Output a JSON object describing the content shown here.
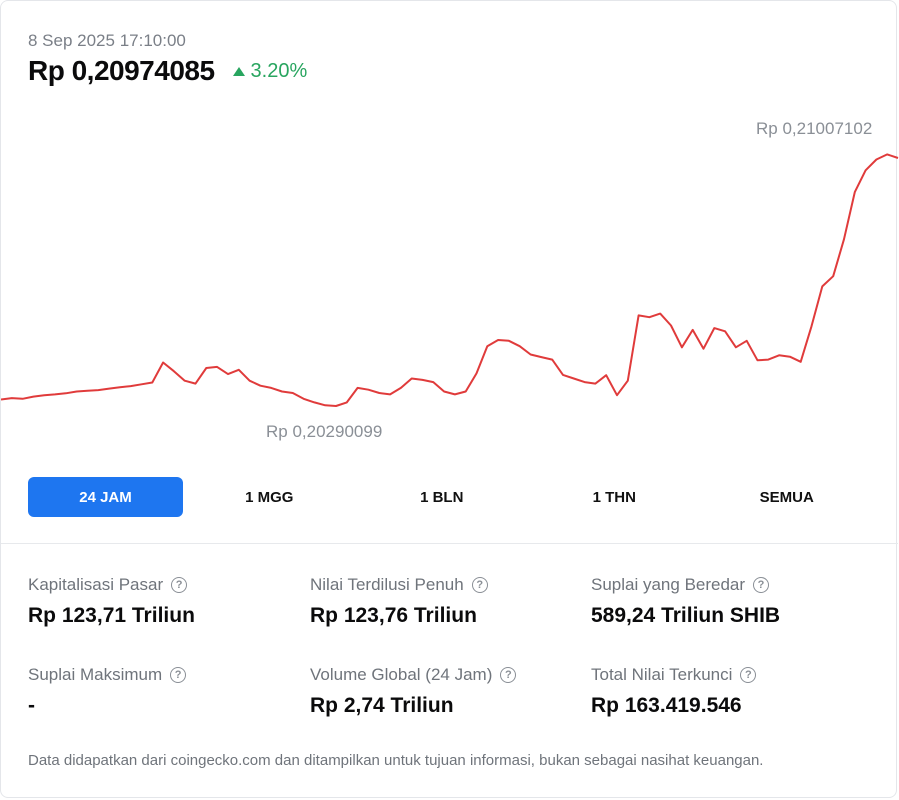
{
  "header": {
    "timestamp": "8 Sep 2025 17:10:00",
    "price": "Rp 0,20974085",
    "change": "3.20%",
    "change_color": "#28a55f"
  },
  "chart_data": {
    "type": "line",
    "title": "",
    "xlabel": "",
    "ylabel": "",
    "line_color": "#e03b3b",
    "high_label": "Rp 0,21007102",
    "low_label": "Rp 0,20290099",
    "ylim": [
      0.20290099,
      0.21007102
    ],
    "y": [
      0.20308,
      0.20312,
      0.2031,
      0.20316,
      0.2032,
      0.20322,
      0.20325,
      0.2033,
      0.20332,
      0.20334,
      0.20338,
      0.20342,
      0.20345,
      0.2035,
      0.20355,
      0.2041,
      0.20386,
      0.2036,
      0.20352,
      0.20395,
      0.20398,
      0.20378,
      0.2039,
      0.2036,
      0.20346,
      0.2034,
      0.2033,
      0.20326,
      0.2031,
      0.203,
      0.20292,
      0.2029,
      0.203,
      0.2034,
      0.20335,
      0.20326,
      0.20322,
      0.2034,
      0.20366,
      0.20362,
      0.20356,
      0.2033,
      0.20322,
      0.2033,
      0.2038,
      0.20455,
      0.20472,
      0.2047,
      0.20455,
      0.20432,
      0.20425,
      0.20418,
      0.20376,
      0.20366,
      0.20356,
      0.20352,
      0.20375,
      0.2032,
      0.2036,
      0.2054,
      0.20535,
      0.20545,
      0.20512,
      0.20452,
      0.205,
      0.20448,
      0.20505,
      0.20496,
      0.20452,
      0.2047,
      0.20416,
      0.20418,
      0.2043,
      0.20426,
      0.20412,
      0.2051,
      0.2062,
      0.20648,
      0.2075,
      0.2088,
      0.2094,
      0.2097,
      0.20984,
      0.20974
    ]
  },
  "tabs": [
    {
      "label": "24 JAM",
      "active": true
    },
    {
      "label": "1 MGG",
      "active": false
    },
    {
      "label": "1 BLN",
      "active": false
    },
    {
      "label": "1 THN",
      "active": false
    },
    {
      "label": "SEMUA",
      "active": false
    }
  ],
  "stats": {
    "market_cap": {
      "label": "Kapitalisasi Pasar",
      "value": "Rp 123,71 Triliun"
    },
    "fdv": {
      "label": "Nilai Terdilusi Penuh",
      "value": "Rp 123,76 Triliun"
    },
    "circulating": {
      "label": "Suplai yang Beredar",
      "value": "589,24 Triliun SHIB"
    },
    "max_supply": {
      "label": "Suplai Maksimum",
      "value": "-"
    },
    "volume": {
      "label": "Volume Global (24 Jam)",
      "value": "Rp 2,74 Triliun"
    },
    "tvl": {
      "label": "Total Nilai Terkunci",
      "value": "Rp 163.419.546"
    }
  },
  "help_icon": "question-circle-icon",
  "help_glyph": "?",
  "disclaimer": "Data didapatkan dari coingecko.com dan ditampilkan untuk tujuan informasi, bukan sebagai nasihat keuangan."
}
